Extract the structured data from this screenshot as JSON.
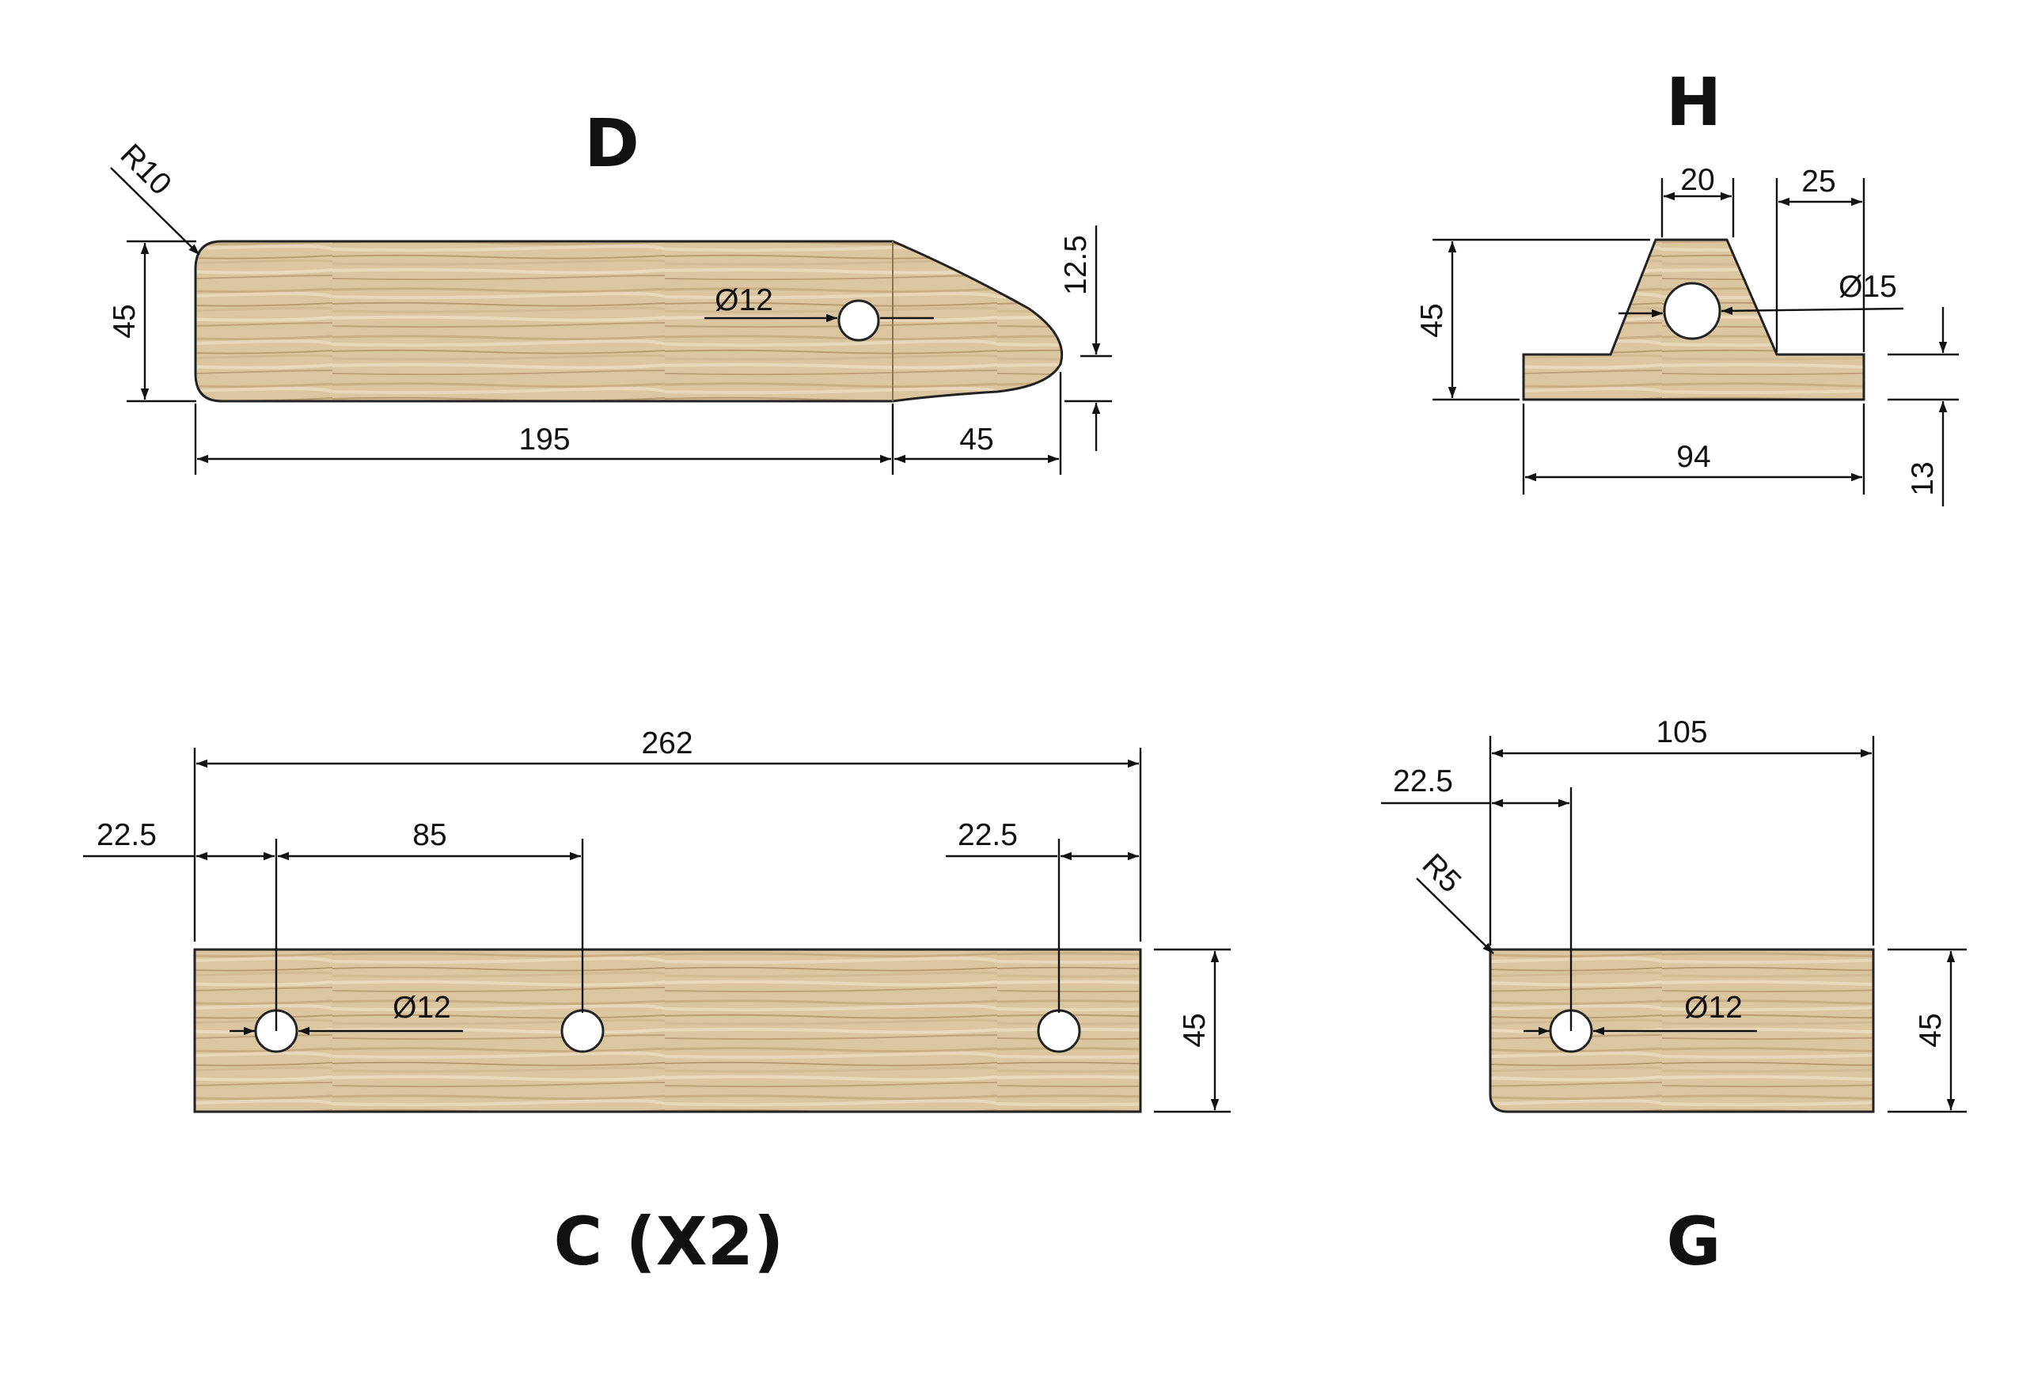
{
  "colors": {
    "wood_light": "#e6d3b2",
    "wood_mid": "#cfb68c",
    "wood_dark": "#a88c64",
    "line": "#111111",
    "background": "#ffffff"
  },
  "parts": {
    "d": {
      "title": "D",
      "radius": "R10",
      "height": "45",
      "hole": "Ø12",
      "tip_offset": "12.5",
      "body_length": "195",
      "tip_length": "45"
    },
    "h": {
      "title": "H",
      "top_width": "20",
      "side_offset": "25",
      "height": "45",
      "hole": "Ø15",
      "base_width": "94",
      "base_height": "13"
    },
    "c": {
      "title": "C (X2)",
      "overall_length": "262",
      "left_offset": "22.5",
      "hole_spacing": "85",
      "right_offset": "22.5",
      "hole": "Ø12",
      "height": "45"
    },
    "g": {
      "title": "G",
      "overall_length": "105",
      "hole_offset": "22.5",
      "radius": "R5",
      "hole": "Ø12",
      "height": "45"
    }
  }
}
